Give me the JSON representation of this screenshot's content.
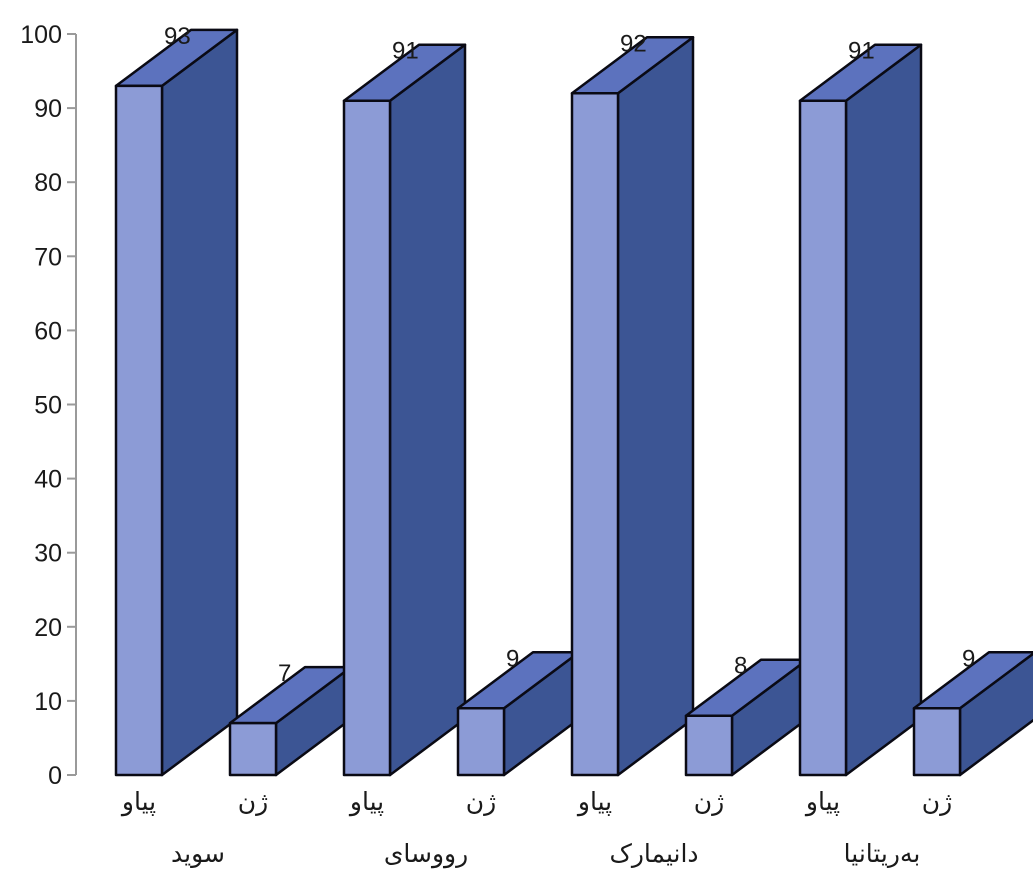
{
  "chart_data": {
    "type": "bar",
    "style": "3d",
    "title": "",
    "xlabel": "",
    "ylabel": "",
    "ylim": [
      0,
      100
    ],
    "yticks": [
      0,
      10,
      20,
      30,
      40,
      50,
      60,
      70,
      80,
      90,
      100
    ],
    "grid": false,
    "legend": "none",
    "groups": [
      {
        "name": "سوید",
        "bars": [
          {
            "label": "پیاو",
            "value": 93
          },
          {
            "label": "ژن",
            "value": 7
          }
        ]
      },
      {
        "name": "رووسای",
        "bars": [
          {
            "label": "پیاو",
            "value": 91
          },
          {
            "label": "ژن",
            "value": 9
          }
        ]
      },
      {
        "name": "دانیمارک",
        "bars": [
          {
            "label": "پیاو",
            "value": 92
          },
          {
            "label": "ژن",
            "value": 8
          }
        ]
      },
      {
        "name": "بەریتانیا",
        "bars": [
          {
            "label": "پیاو",
            "value": 91
          },
          {
            "label": "ژن",
            "value": 9
          }
        ]
      }
    ],
    "colors": {
      "front": "#8c9bd6",
      "side": "#3c5594",
      "top": "#5c72be",
      "outline": "#0a0a14",
      "axis": "#9a9a9a"
    }
  }
}
